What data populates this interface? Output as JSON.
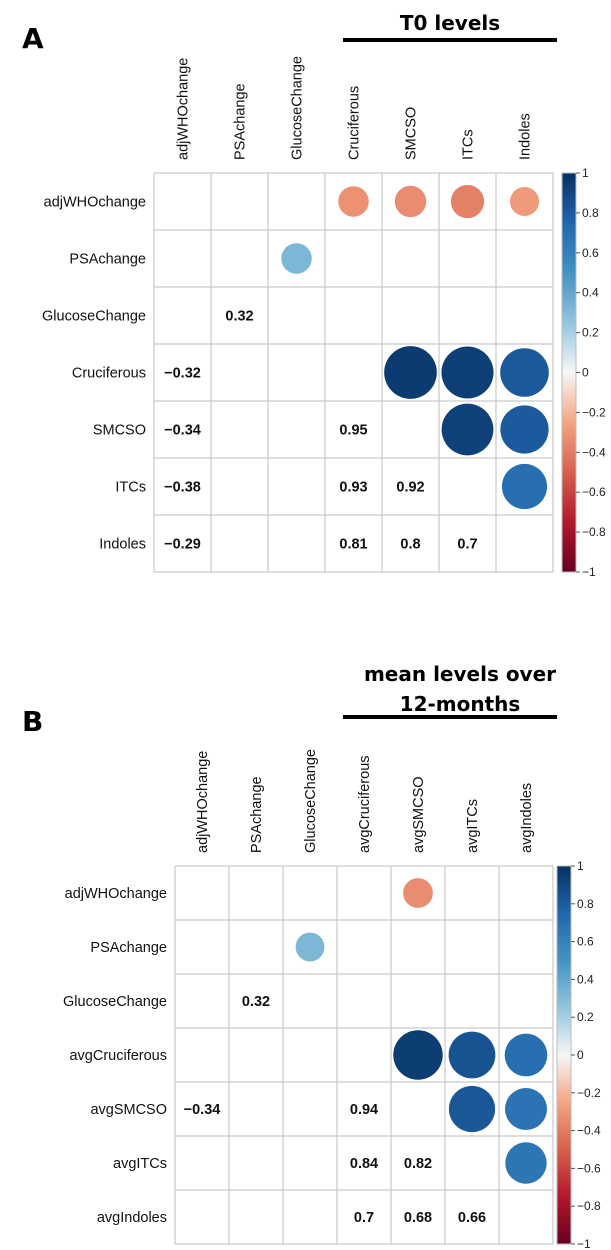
{
  "chart_data": [
    {
      "type": "heatmap",
      "panel": "A",
      "bracket_label": [
        "T0 levels"
      ],
      "variables": [
        "adjWHOchange",
        "PSAchange",
        "GlucoseChange",
        "Cruciferous",
        "SMCSO",
        "ITCs",
        "Indoles"
      ],
      "circles": [
        {
          "row": 0,
          "col": 3,
          "value": -0.32
        },
        {
          "row": 0,
          "col": 4,
          "value": -0.34
        },
        {
          "row": 0,
          "col": 5,
          "value": -0.38
        },
        {
          "row": 0,
          "col": 6,
          "value": -0.29
        },
        {
          "row": 1,
          "col": 2,
          "value": 0.32
        },
        {
          "row": 3,
          "col": 4,
          "value": 0.95
        },
        {
          "row": 3,
          "col": 5,
          "value": 0.93
        },
        {
          "row": 3,
          "col": 6,
          "value": 0.81
        },
        {
          "row": 4,
          "col": 5,
          "value": 0.92
        },
        {
          "row": 4,
          "col": 6,
          "value": 0.8
        },
        {
          "row": 5,
          "col": 6,
          "value": 0.7
        }
      ],
      "labels": [
        {
          "row": 2,
          "col": 1,
          "text": "0.32"
        },
        {
          "row": 3,
          "col": 0,
          "text": "−0.32"
        },
        {
          "row": 4,
          "col": 0,
          "text": "−0.34"
        },
        {
          "row": 4,
          "col": 3,
          "text": "0.95"
        },
        {
          "row": 5,
          "col": 0,
          "text": "−0.38"
        },
        {
          "row": 5,
          "col": 3,
          "text": "0.93"
        },
        {
          "row": 5,
          "col": 4,
          "text": "0.92"
        },
        {
          "row": 6,
          "col": 0,
          "text": "−0.29"
        },
        {
          "row": 6,
          "col": 3,
          "text": "0.81"
        },
        {
          "row": 6,
          "col": 4,
          "text": "0.8"
        },
        {
          "row": 6,
          "col": 5,
          "text": "0.7"
        }
      ],
      "colorbar": {
        "ticks": [
          "1",
          "0.8",
          "0.6",
          "0.4",
          "0.2",
          "0",
          "−0.2",
          "−0.4",
          "−0.6",
          "−0.8",
          "−1"
        ],
        "range": [
          -1,
          1
        ]
      }
    },
    {
      "type": "heatmap",
      "panel": "B",
      "bracket_label": [
        "mean levels over",
        "12-months"
      ],
      "variables": [
        "adjWHOchange",
        "PSAchange",
        "GlucoseChange",
        "avgCruciferous",
        "avgSMCSO",
        "avgITCs",
        "avgIndoles"
      ],
      "circles": [
        {
          "row": 0,
          "col": 4,
          "value": -0.34
        },
        {
          "row": 1,
          "col": 2,
          "value": 0.32
        },
        {
          "row": 3,
          "col": 4,
          "value": 0.94
        },
        {
          "row": 3,
          "col": 5,
          "value": 0.84
        },
        {
          "row": 3,
          "col": 6,
          "value": 0.7
        },
        {
          "row": 4,
          "col": 5,
          "value": 0.82
        },
        {
          "row": 4,
          "col": 6,
          "value": 0.68
        },
        {
          "row": 5,
          "col": 6,
          "value": 0.66
        }
      ],
      "labels": [
        {
          "row": 2,
          "col": 1,
          "text": "0.32"
        },
        {
          "row": 4,
          "col": 0,
          "text": "−0.34"
        },
        {
          "row": 4,
          "col": 3,
          "text": "0.94"
        },
        {
          "row": 5,
          "col": 3,
          "text": "0.84"
        },
        {
          "row": 5,
          "col": 4,
          "text": "0.82"
        },
        {
          "row": 6,
          "col": 3,
          "text": "0.7"
        },
        {
          "row": 6,
          "col": 4,
          "text": "0.68"
        },
        {
          "row": 6,
          "col": 5,
          "text": "0.66"
        }
      ],
      "colorbar": {
        "ticks": [
          "1",
          "0.8",
          "0.6",
          "0.4",
          "0.2",
          "0",
          "−0.2",
          "−0.4",
          "−0.6",
          "−0.8",
          "−1"
        ],
        "range": [
          -1,
          1
        ]
      }
    }
  ]
}
